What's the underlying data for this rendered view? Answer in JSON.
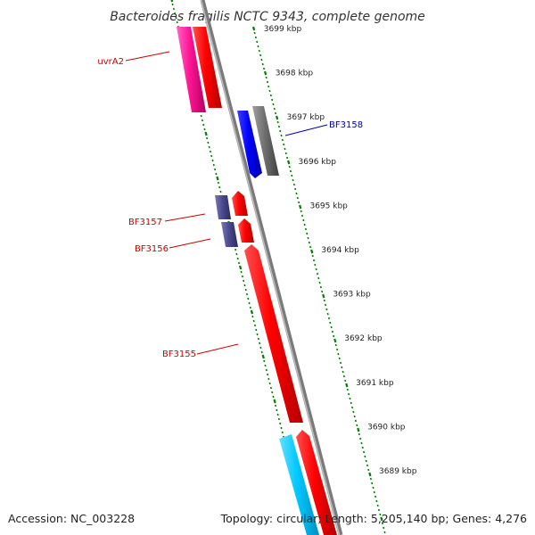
{
  "title": "Bacteroides fragilis NCTC 9343, complete genome",
  "footer": {
    "accession": "Accession: NC_003228",
    "summary": "Topology: circular; Length: 5,205,140 bp; Genes: 4,276"
  },
  "ruler": {
    "labels": [
      "3699 kbp",
      "3698 kbp",
      "3697 kbp",
      "3696 kbp",
      "3695 kbp",
      "3694 kbp",
      "3693 kbp",
      "3692 kbp",
      "3691 kbp",
      "3690 kbp",
      "3689 kbp"
    ],
    "tick_color": "#008000"
  },
  "backbone_color": "#7a7a7a",
  "genes": {
    "uvrA2": {
      "label": "uvrA2",
      "color": "#cc0000"
    },
    "BF3158": {
      "label": "BF3158",
      "color": "#0000aa"
    },
    "BF3157": {
      "label": "BF3157",
      "color": "#cc0000"
    },
    "BF3156": {
      "label": "BF3156",
      "color": "#cc0000"
    },
    "BF3155": {
      "label": "BF3155",
      "color": "#cc0000"
    }
  },
  "feature_colors": {
    "red": "#ff0000",
    "magenta": "#ff1493",
    "blue": "#0000ff",
    "gray": "#666666",
    "slate": "#4b4b8f",
    "cyan": "#00c8ff"
  }
}
